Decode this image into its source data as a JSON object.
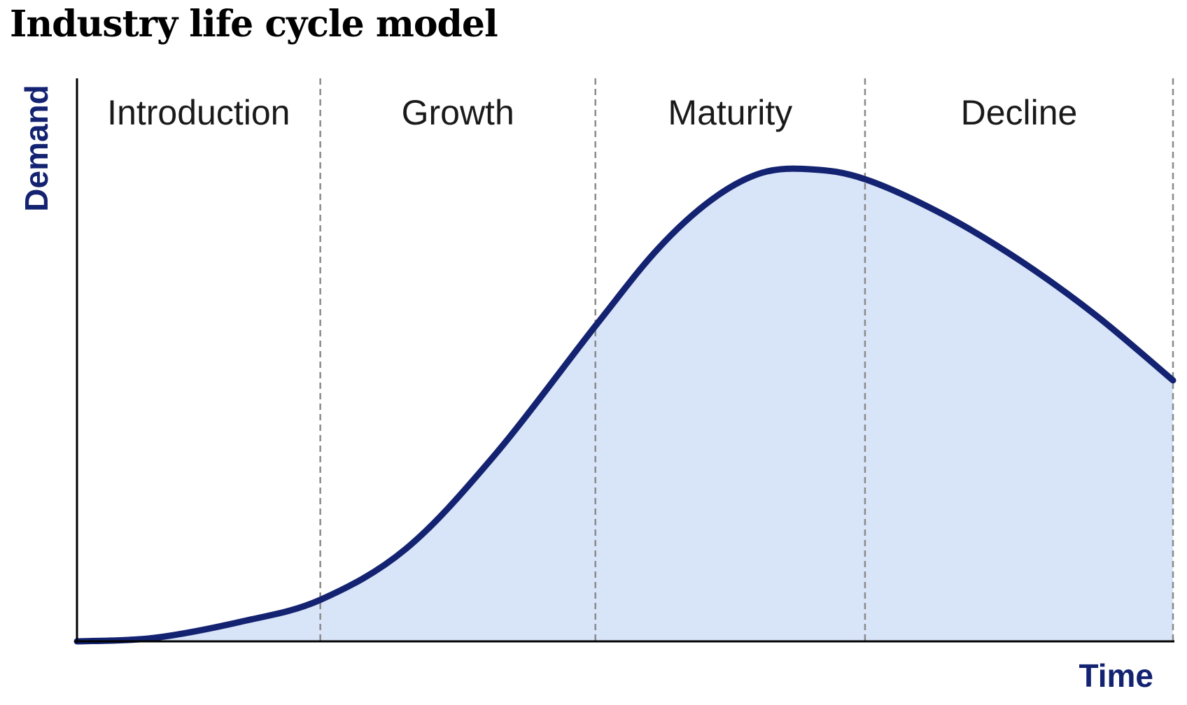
{
  "title": "Industry life cycle model",
  "colors": {
    "curve": "#142371",
    "fill": "#d8e4f8",
    "axis": "#000000",
    "divider": "#8a8a8a",
    "axis_title": "#142371"
  },
  "chart_data": {
    "type": "area",
    "title": "Industry life cycle model",
    "xlabel": "Time",
    "ylabel": "Demand",
    "xlim": [
      0,
      100
    ],
    "ylim": [
      0,
      100
    ],
    "grid": false,
    "phases": [
      {
        "label": "Introduction",
        "start": 0,
        "end": 22.2
      },
      {
        "label": "Growth",
        "start": 22.2,
        "end": 47.3
      },
      {
        "label": "Maturity",
        "start": 47.3,
        "end": 71.9
      },
      {
        "label": "Decline",
        "start": 71.9,
        "end": 100
      }
    ],
    "series": [
      {
        "x": [
          0,
          7,
          15,
          22.2,
          30,
          38,
          47.3,
          53,
          58,
          62.5,
          67,
          71.9,
          79,
          86,
          93,
          100
        ],
        "values": [
          0,
          0.7,
          4,
          8.4,
          18.7,
          37.4,
          63.8,
          79.4,
          89.5,
          94.8,
          95.5,
          93.5,
          86.4,
          77.1,
          65.9,
          52.8
        ]
      }
    ]
  }
}
